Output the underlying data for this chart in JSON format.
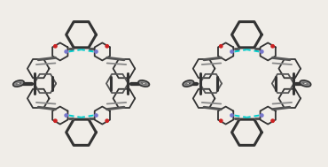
{
  "bg_color": "#f0ede8",
  "mol_color": "#555555",
  "mol_color_dark": "#333333",
  "mol_color_light": "#888888",
  "n_color": "#7777cc",
  "o_color": "#cc2222",
  "h_bond_color": "#00cccc",
  "lw_thick": 2.2,
  "lw_thin": 1.3,
  "lw_hbond": 1.4,
  "fig_w": 3.7,
  "fig_h": 1.89
}
